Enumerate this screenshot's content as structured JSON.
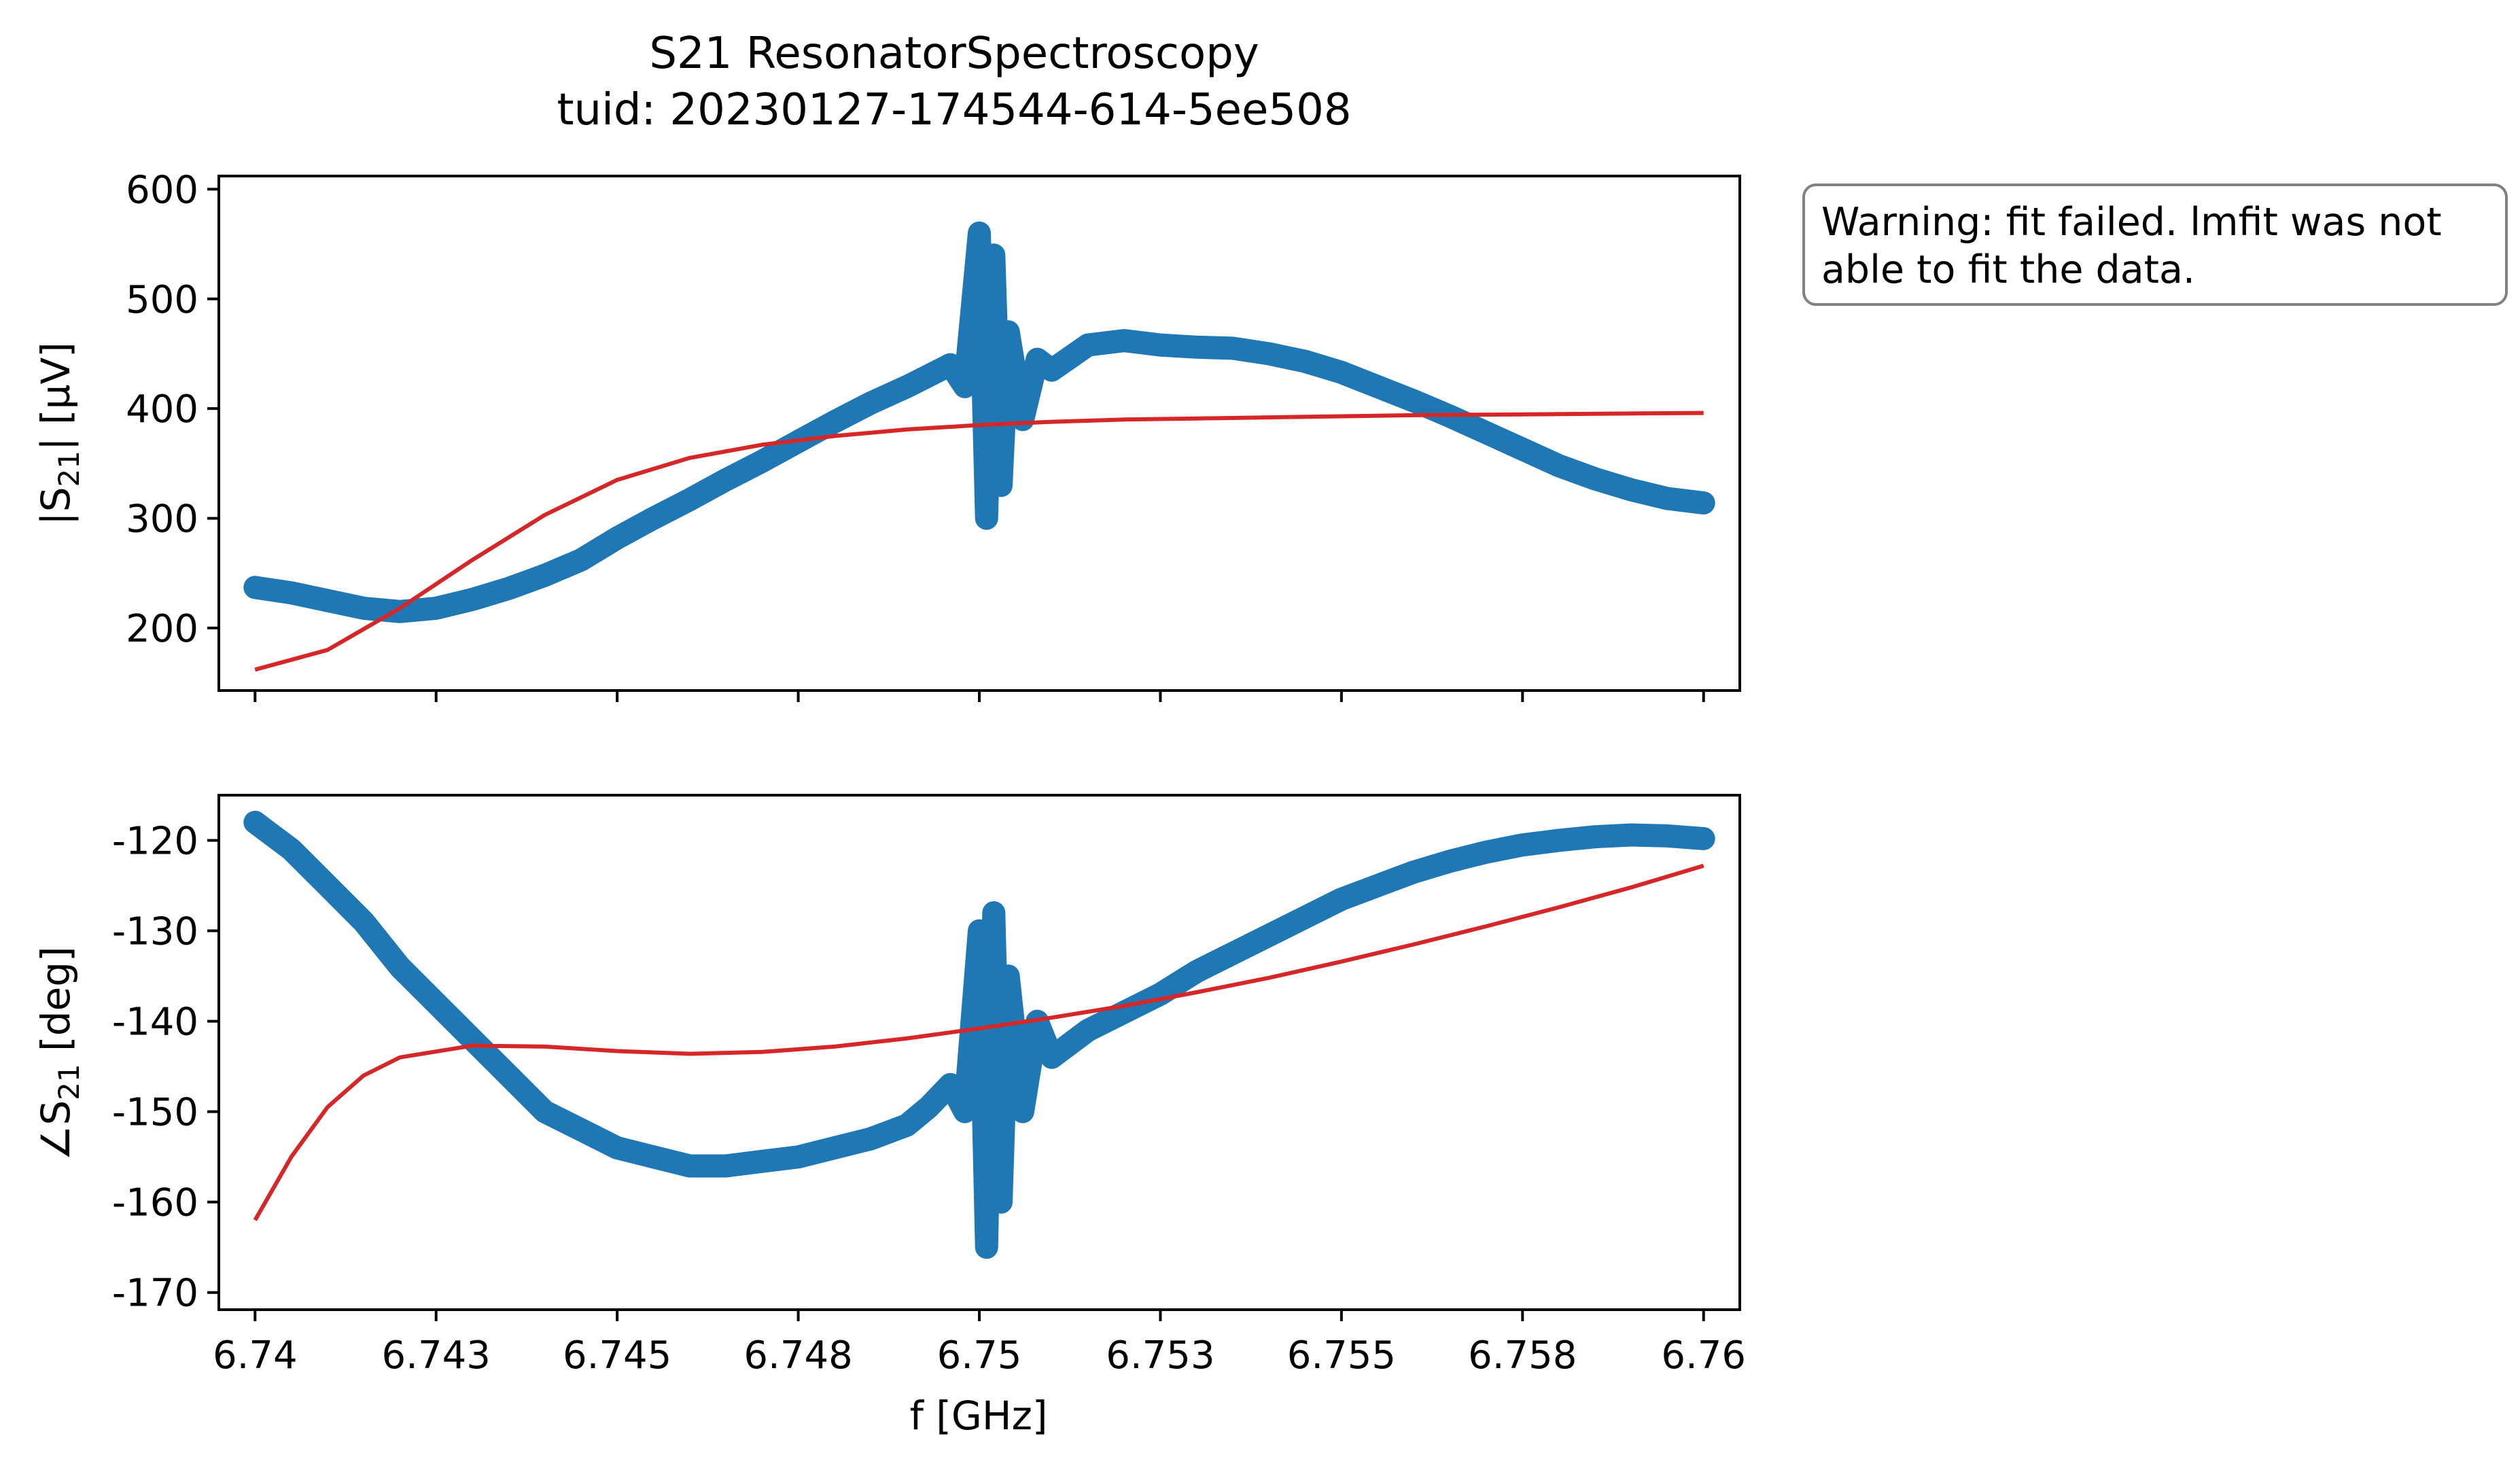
{
  "chart_data": {
    "type": "scatter",
    "title": "S21 ResonatorSpectroscopy",
    "subtitle": "tuid: 20230127-174544-614-5ee508",
    "xlabel": "f [GHz]",
    "xlim": [
      6.7395,
      6.7605
    ],
    "xticks": [
      6.74,
      6.7425,
      6.745,
      6.7475,
      6.75,
      6.7525,
      6.755,
      6.7575,
      6.76
    ],
    "xtick_labels": [
      "6.74",
      "6.743",
      "6.745",
      "6.748",
      "6.75",
      "6.753",
      "6.755",
      "6.758",
      "6.76"
    ],
    "annotation": {
      "line1": "Warning: fit failed. lmfit was not",
      "line2": "able to fit the data."
    },
    "colors": {
      "data": "#1f77b4",
      "fit": "#d62728"
    },
    "panels": [
      {
        "name": "magnitude",
        "ylabel_prefix": "|S",
        "ylabel_sub": "21",
        "ylabel_suffix": "| [µV]",
        "ylim": [
          143,
          612
        ],
        "yticks": [
          200,
          300,
          400,
          500,
          600
        ],
        "ytick_labels": [
          "200",
          "300",
          "400",
          "500",
          "600"
        ],
        "data_points": [
          [
            6.74,
            237
          ],
          [
            6.7405,
            232
          ],
          [
            6.741,
            225
          ],
          [
            6.7415,
            218
          ],
          [
            6.742,
            215
          ],
          [
            6.7425,
            218
          ],
          [
            6.743,
            226
          ],
          [
            6.7435,
            236
          ],
          [
            6.744,
            248
          ],
          [
            6.7445,
            262
          ],
          [
            6.745,
            282
          ],
          [
            6.7455,
            300
          ],
          [
            6.746,
            317
          ],
          [
            6.7465,
            335
          ],
          [
            6.747,
            352
          ],
          [
            6.7475,
            370
          ],
          [
            6.748,
            388
          ],
          [
            6.7485,
            405
          ],
          [
            6.749,
            420
          ],
          [
            6.7493,
            430
          ],
          [
            6.7496,
            440
          ],
          [
            6.7498,
            420
          ],
          [
            6.75,
            560
          ],
          [
            6.7501,
            300
          ],
          [
            6.7502,
            540
          ],
          [
            6.7503,
            330
          ],
          [
            6.7504,
            470
          ],
          [
            6.7506,
            390
          ],
          [
            6.7508,
            445
          ],
          [
            6.751,
            435
          ],
          [
            6.7515,
            458
          ],
          [
            6.752,
            462
          ],
          [
            6.7525,
            458
          ],
          [
            6.753,
            456
          ],
          [
            6.7535,
            455
          ],
          [
            6.754,
            450
          ],
          [
            6.7545,
            443
          ],
          [
            6.755,
            433
          ],
          [
            6.7555,
            420
          ],
          [
            6.756,
            407
          ],
          [
            6.7565,
            393
          ],
          [
            6.757,
            378
          ],
          [
            6.7575,
            363
          ],
          [
            6.758,
            348
          ],
          [
            6.7585,
            336
          ],
          [
            6.759,
            326
          ],
          [
            6.7595,
            318
          ],
          [
            6.76,
            314
          ]
        ],
        "fit_points": [
          [
            6.74,
            162
          ],
          [
            6.741,
            180
          ],
          [
            6.742,
            218
          ],
          [
            6.743,
            262
          ],
          [
            6.744,
            303
          ],
          [
            6.745,
            335
          ],
          [
            6.746,
            355
          ],
          [
            6.747,
            367
          ],
          [
            6.748,
            375
          ],
          [
            6.749,
            381
          ],
          [
            6.75,
            385
          ],
          [
            6.751,
            388
          ],
          [
            6.752,
            390
          ],
          [
            6.753,
            391
          ],
          [
            6.754,
            392
          ],
          [
            6.755,
            393
          ],
          [
            6.756,
            394
          ],
          [
            6.757,
            394.5
          ],
          [
            6.758,
            395
          ],
          [
            6.759,
            395.5
          ],
          [
            6.76,
            396
          ]
        ]
      },
      {
        "name": "phase",
        "ylabel_prefix": "∠S",
        "ylabel_sub": "21",
        "ylabel_suffix": " [deg]",
        "ylim": [
          -171.9,
          -115.0
        ],
        "yticks": [
          -170,
          -160,
          -150,
          -140,
          -130,
          -120
        ],
        "ytick_labels": [
          "-170",
          "-160",
          "-150",
          "-140",
          "-130",
          "-120"
        ],
        "data_points": [
          [
            6.74,
            -118
          ],
          [
            6.7405,
            -121
          ],
          [
            6.741,
            -125
          ],
          [
            6.7415,
            -129
          ],
          [
            6.742,
            -134
          ],
          [
            6.7425,
            -138
          ],
          [
            6.743,
            -142
          ],
          [
            6.7435,
            -146
          ],
          [
            6.744,
            -150
          ],
          [
            6.7445,
            -152
          ],
          [
            6.745,
            -154
          ],
          [
            6.7455,
            -155
          ],
          [
            6.746,
            -156
          ],
          [
            6.7465,
            -156
          ],
          [
            6.747,
            -155.5
          ],
          [
            6.7475,
            -155
          ],
          [
            6.748,
            -154
          ],
          [
            6.7485,
            -153
          ],
          [
            6.749,
            -151.5
          ],
          [
            6.7493,
            -149.5
          ],
          [
            6.7496,
            -147
          ],
          [
            6.7498,
            -150
          ],
          [
            6.75,
            -130
          ],
          [
            6.7501,
            -165
          ],
          [
            6.7502,
            -128
          ],
          [
            6.7503,
            -160
          ],
          [
            6.7504,
            -135
          ],
          [
            6.7506,
            -150
          ],
          [
            6.7508,
            -140
          ],
          [
            6.751,
            -144
          ],
          [
            6.7515,
            -141
          ],
          [
            6.752,
            -139
          ],
          [
            6.7525,
            -137
          ],
          [
            6.753,
            -134.5
          ],
          [
            6.7535,
            -132.5
          ],
          [
            6.754,
            -130.5
          ],
          [
            6.7545,
            -128.5
          ],
          [
            6.755,
            -126.5
          ],
          [
            6.7555,
            -125
          ],
          [
            6.756,
            -123.5
          ],
          [
            6.7565,
            -122.3
          ],
          [
            6.757,
            -121.3
          ],
          [
            6.7575,
            -120.5
          ],
          [
            6.758,
            -120
          ],
          [
            6.7585,
            -119.6
          ],
          [
            6.759,
            -119.4
          ],
          [
            6.7595,
            -119.5
          ],
          [
            6.76,
            -119.8
          ]
        ],
        "fit_points": [
          [
            6.74,
            -162
          ],
          [
            6.7405,
            -155
          ],
          [
            6.741,
            -149.5
          ],
          [
            6.7415,
            -146
          ],
          [
            6.742,
            -144
          ],
          [
            6.743,
            -142.7
          ],
          [
            6.744,
            -142.8
          ],
          [
            6.745,
            -143.3
          ],
          [
            6.746,
            -143.6
          ],
          [
            6.747,
            -143.4
          ],
          [
            6.748,
            -142.8
          ],
          [
            6.749,
            -141.9
          ],
          [
            6.75,
            -140.8
          ],
          [
            6.751,
            -139.6
          ],
          [
            6.752,
            -138.3
          ],
          [
            6.753,
            -136.8
          ],
          [
            6.754,
            -135.2
          ],
          [
            6.755,
            -133.4
          ],
          [
            6.756,
            -131.5
          ],
          [
            6.757,
            -129.5
          ],
          [
            6.758,
            -127.4
          ],
          [
            6.759,
            -125.2
          ],
          [
            6.76,
            -122.8
          ]
        ]
      }
    ]
  }
}
